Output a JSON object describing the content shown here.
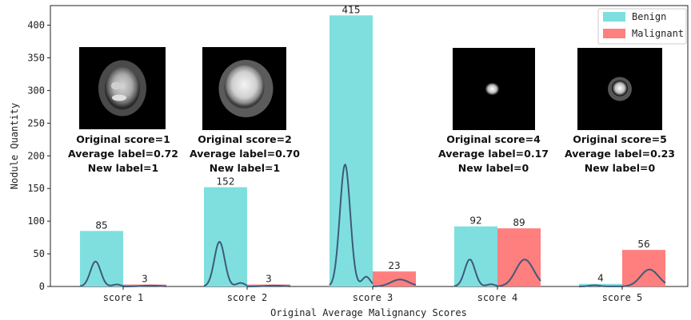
{
  "chart_data": {
    "type": "bar",
    "xlabel": "Original Average Malignancy Scores",
    "ylabel": "Nodule Quantity",
    "ylim": [
      0,
      430
    ],
    "yticks": [
      0,
      50,
      100,
      150,
      200,
      250,
      300,
      350,
      400
    ],
    "categories": [
      "score 1",
      "score 2",
      "score 3",
      "score 4",
      "score 5"
    ],
    "series": [
      {
        "name": "Benign",
        "color": "#7fdfdf",
        "values": [
          85,
          152,
          415,
          92,
          4
        ]
      },
      {
        "name": "Malignant",
        "color": "#ff7f7f",
        "values": [
          3,
          3,
          23,
          89,
          56
        ]
      }
    ],
    "density_color": "#3f5a78",
    "legend_position": "top-right",
    "grid": false,
    "annotations": [
      {
        "category": "score 1",
        "lines": [
          "Original score=1",
          "Average label=0.72",
          "New label=1"
        ],
        "thumbnail": "nodule-large-textured"
      },
      {
        "category": "score 2",
        "lines": [
          "Original score=2",
          "Average label=0.70",
          "New label=1"
        ],
        "thumbnail": "nodule-large-bright"
      },
      {
        "category": "score 4",
        "lines": [
          "Original score=4",
          "Average label=0.17",
          "New label=0"
        ],
        "thumbnail": "nodule-small"
      },
      {
        "category": "score 5",
        "lines": [
          "Original score=5",
          "Average label=0.23",
          "New label=0"
        ],
        "thumbnail": "nodule-small-blob"
      }
    ]
  }
}
